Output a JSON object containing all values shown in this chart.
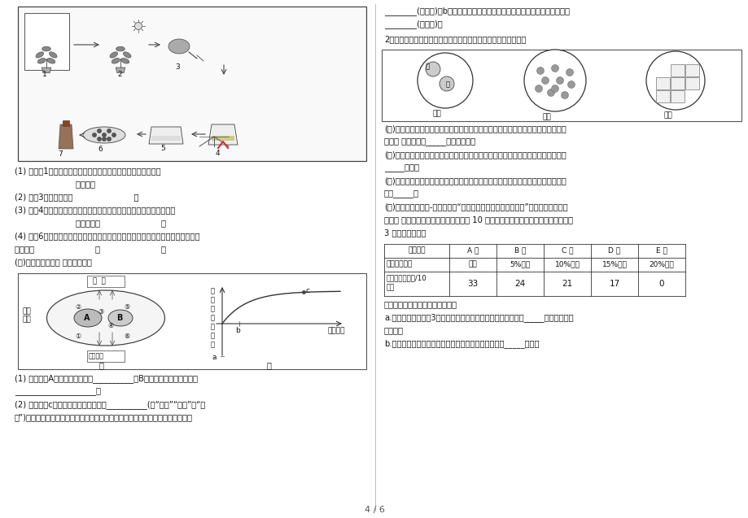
{
  "page_num": "4 / 6",
  "background_color": "#ffffff",
  "text_color": "#000000",
  "border_color": "#000000",
  "left_q1": "(1) 在步骤1中，要将天竺葵进行黑暗处理一昨夜的目的是运用了",
  "left_q1b": "                        的原理。",
  "left_q2": "(2) 步骤3的具体操作是                        。",
  "left_q3": "(3) 步骤4中，将叶片放到酒精中水浴加热，有两个目的，一是为了避免",
  "left_q3b": "                        ，二是为了                        。",
  "left_q4": "(4) 步骤6中，叶片见光部分遇碼液变成蓝色，叶片遥光部分变成棕褐色，证明了两",
  "left_q4b": "个结论：                        、                        。",
  "left_q5": "(二)观察下列图片， 请分析作答：",
  "left_qb1": "(1) 图甲中，A代表的细胞结构是__________，B进行的生理过程的实质是",
  "left_qb1b": "____________________。",
  "left_qb2": "(2) 图乙中，c点时该植物光合作用强度__________(填“大于”“等于”或“小",
  "left_qb2b": "于”)呼吸作用的强度，此时，其叶肉细胞中不存在的气体的来源或去路是图甲中的",
  "right_qt1": "________(填数字)；b点时，叶肉细胞中不存在的气体的来源或去路是图甲中的",
  "right_qt2": "________(填数字)。",
  "right_q2title": "2、下列是利用显微镜进行观察的部分实验，请依题意回答问题。",
  "right_qm1": "(１)在观察人体口腔上皮细胞时，出现了图一中甲的情况，要将视野中细胞的位置由",
  "right_qm1b": "甲调整 成乙，应向_____方移动装片。",
  "right_qm2": "(２)通过图二的观察我们知道洋葱鸞片叶内表皮细胞比人的口腔上皮细胞多了液泡和",
  "right_qm2b": "_____结构。",
  "right_qm3": "(３)图三是用显微镜观察人血永久涂片时看到的各种血细胞，视野内体积最大的血细",
  "right_qm3b": "胞是_____。",
  "right_qm4": "(４)某生物兴趣小组-同学在探究“酒精对水蚤心率是否有影响？”时，他们利用显微",
  "right_qm4b": "镜观察 了不同体积分数的酒精中水蚤在 10 秒内心脏跳动的次数，每组实验都重复做",
  "right_qm4c": "3 次，取平均値。",
  "table_headers": [
    "实验组别",
    "A 组",
    "B 组",
    "C 组",
    "D 组",
    "E 组"
  ],
  "table_row1_label": "酒精体积分数",
  "table_row1_vals": [
    "清水",
    "5%酒精",
    "10%酒精",
    "15%酒精",
    "20%酒精"
  ],
  "table_row2_label1": "心率平均値（次/10",
  "table_row2_label2": "秒）",
  "table_row2_vals": [
    "33",
    "24",
    "21",
    "17",
    "0"
  ],
  "right_qb1": "请根据上表的内容回答下列问题：",
  "right_qb2": "a.每组实验都重复做3次，取平均値，这样做的目的是为了减少_____，使实验结果",
  "right_qb2b": "更准确。",
  "right_qb3": "b.分析表中数据，你得出的结论是：酒精对水蚤的心率_____影响。"
}
